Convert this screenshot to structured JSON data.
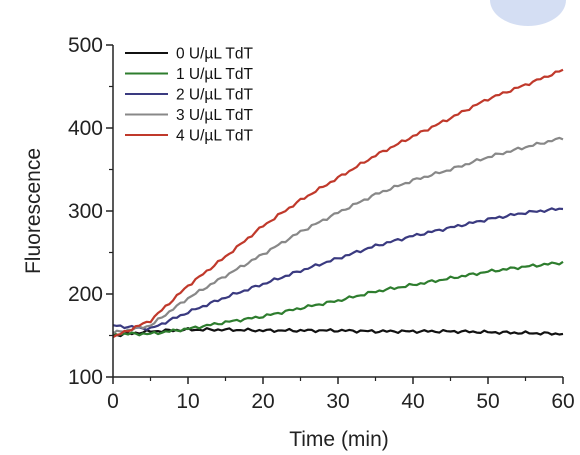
{
  "chart_data": {
    "type": "line",
    "title": "",
    "xlabel": "Time (min)",
    "ylabel": "Fluorescence",
    "xlim": [
      0,
      60
    ],
    "ylim": [
      100,
      500
    ],
    "xticks": [
      0,
      10,
      20,
      30,
      40,
      50,
      60
    ],
    "yticks": [
      100,
      200,
      300,
      400,
      500
    ],
    "grid": false,
    "legend_position": "top-left",
    "x": [
      0,
      5,
      10,
      15,
      20,
      25,
      30,
      35,
      40,
      45,
      50,
      55,
      60
    ],
    "series": [
      {
        "name": "0 U/µL TdT",
        "color": "#111111",
        "values": [
          150,
          155,
          157,
          157,
          156,
          156,
          156,
          155,
          155,
          155,
          154,
          153,
          152
        ]
      },
      {
        "name": "1 U/µL TdT",
        "color": "#2e7d2e",
        "values": [
          152,
          152,
          158,
          166,
          173,
          183,
          192,
          203,
          211,
          219,
          227,
          233,
          238
        ]
      },
      {
        "name": "2 U/µL TdT",
        "color": "#3a3a80",
        "values": [
          162,
          158,
          178,
          196,
          212,
          228,
          243,
          258,
          270,
          280,
          290,
          298,
          303
        ]
      },
      {
        "name": "3 U/µL TdT",
        "color": "#888888",
        "values": [
          153,
          162,
          195,
          222,
          248,
          275,
          298,
          320,
          337,
          350,
          365,
          377,
          388
        ]
      },
      {
        "name": "4 U/µL TdT",
        "color": "#c0392b",
        "values": [
          148,
          168,
          210,
          245,
          282,
          313,
          340,
          367,
          390,
          412,
          435,
          452,
          470
        ]
      }
    ]
  }
}
